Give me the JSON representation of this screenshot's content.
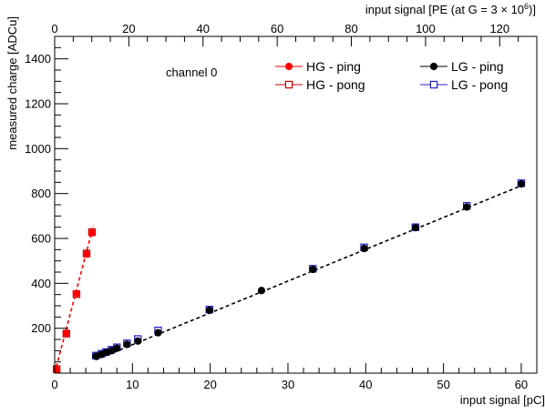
{
  "chart_data": {
    "type": "scatter",
    "title": "",
    "xlabel": "input signal [pC]",
    "ylabel": "measured charge  [ADCu]",
    "top_axis_label_parts": [
      "input signal [PE (at G = 3 ",
      "×",
      " 10",
      "6",
      ")]"
    ],
    "annotation": "channel 0",
    "xlim": [
      0,
      62
    ],
    "ylim": [
      0,
      1500
    ],
    "top_xlim": [
      0,
      130
    ],
    "x_ticks": [
      "0",
      "10",
      "20",
      "30",
      "40",
      "50",
      "60"
    ],
    "y_ticks": [
      "200",
      "400",
      "600",
      "800",
      "1000",
      "1200",
      "1400"
    ],
    "top_ticks": [
      "0",
      "20",
      "40",
      "60",
      "80",
      "100",
      "120"
    ],
    "grid": false,
    "legend_position": "top-right",
    "series": [
      {
        "name": "HG - ping",
        "color": "#ff0000",
        "marker": "filled-circle",
        "x": [
          0.25,
          1.5,
          2.8,
          4.1,
          4.8
        ],
        "y": [
          15,
          178,
          355,
          530,
          625
        ]
      },
      {
        "name": "HG - pong",
        "color": "#c00000",
        "marker": "open-square",
        "x": [
          0.25,
          1.5,
          2.8,
          4.1,
          4.8
        ],
        "y": [
          18,
          176,
          352,
          533,
          628
        ]
      },
      {
        "name": "LG - ping",
        "color": "#000000",
        "marker": "filled-circle",
        "x": [
          5.3,
          6.0,
          6.6,
          7.3,
          8.0,
          9.3,
          10.7,
          13.3,
          19.9,
          26.6,
          33.2,
          39.8,
          46.4,
          53.0,
          60.0
        ],
        "y": [
          75,
          83,
          92,
          100,
          111,
          128,
          143,
          180,
          280,
          368,
          462,
          555,
          648,
          740,
          843
        ]
      },
      {
        "name": "LG - pong",
        "color": "#2020cc",
        "marker": "open-square",
        "x": [
          5.3,
          6.0,
          6.6,
          7.3,
          8.0,
          9.3,
          10.7,
          13.3,
          19.9,
          33.2,
          39.8,
          46.4,
          53.0,
          60.0
        ],
        "y": [
          78,
          86,
          94,
          104,
          115,
          133,
          152,
          190,
          283,
          465,
          560,
          650,
          745,
          846
        ]
      }
    ],
    "fits": [
      {
        "color": "#ff0000",
        "style": "dashed",
        "x": [
          0,
          5.0
        ],
        "y": [
          0,
          660
        ]
      },
      {
        "color": "#000000",
        "style": "dashed",
        "x": [
          5.3,
          60.0
        ],
        "y": [
          60,
          835
        ]
      }
    ]
  }
}
